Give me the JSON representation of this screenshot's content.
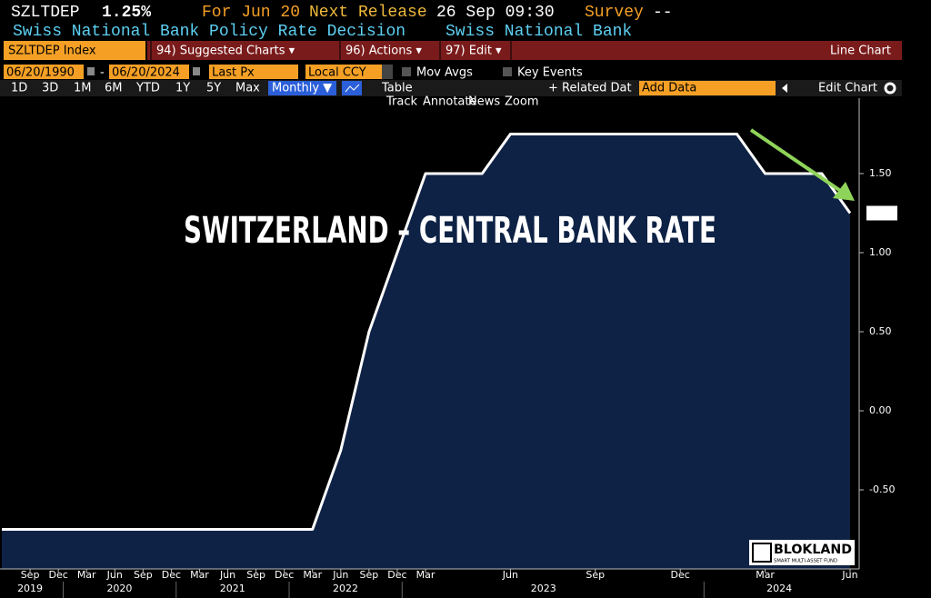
{
  "header": {
    "ticker": "SZLTDEP",
    "price": "1.25%",
    "for_label": "For Jun 20",
    "next_release_label": "Next Release",
    "next_release": "26 Sep 09:30",
    "survey_label": "Survey",
    "survey": "--",
    "description": "Swiss National Bank Policy Rate Decision",
    "source": "Swiss National Bank"
  },
  "toolbar": {
    "security": "SZLTDEP Index",
    "menus": [
      "94) Suggested Charts ▾",
      "96) Actions ▾",
      "97) Edit ▾"
    ],
    "chart_type": "Line Chart"
  },
  "controls": {
    "start_date": "06/20/1990",
    "separator": "-",
    "end_date": "06/20/2024",
    "field": "Last Px",
    "currency": "Local CCY",
    "mov_avgs": "Mov Avgs",
    "key_events": "Key Events"
  },
  "ranges": [
    "1D",
    "3D",
    "1M",
    "6M",
    "YTD",
    "1Y",
    "5Y",
    "Max"
  ],
  "frequency": "Monthly ▼",
  "table": "Table",
  "related": "+ Related Dat",
  "add_data": "Add Data",
  "edit_chart": "Edit Chart",
  "tools": [
    "Track",
    "Annotate",
    "News",
    "Zoom"
  ],
  "chart_data": {
    "type": "line",
    "annotation": "SWITZERLAND – CENTRAL BANK RATE",
    "x": [
      "2019-06",
      "2022-03",
      "2022-06",
      "2022-09",
      "2022-12",
      "2023-03",
      "2023-05",
      "2023-06",
      "2024-02",
      "2024-03",
      "2024-05",
      "2024-06"
    ],
    "values": [
      -0.75,
      -0.75,
      -0.25,
      0.5,
      1.0,
      1.5,
      1.5,
      1.75,
      1.75,
      1.5,
      1.5,
      1.25
    ],
    "color": "#ffffff",
    "area_color": "#0e2245",
    "xlim": [
      "2019-06",
      "2024-06"
    ],
    "xticks": [
      {
        "value": "2019-09",
        "label": "Sep"
      },
      {
        "value": "2019-12",
        "label": "Dec"
      },
      {
        "value": "2020-03",
        "label": "Mar"
      },
      {
        "value": "2020-06",
        "label": "Jun"
      },
      {
        "value": "2020-09",
        "label": "Sep"
      },
      {
        "value": "2020-12",
        "label": "Dec"
      },
      {
        "value": "2021-03",
        "label": "Mar"
      },
      {
        "value": "2021-06",
        "label": "Jun"
      },
      {
        "value": "2021-09",
        "label": "Sep"
      },
      {
        "value": "2021-12",
        "label": "Dec"
      },
      {
        "value": "2022-03",
        "label": "Mar"
      },
      {
        "value": "2022-06",
        "label": "Jun"
      },
      {
        "value": "2022-09",
        "label": "Sep"
      },
      {
        "value": "2022-12",
        "label": "Dec"
      },
      {
        "value": "2023-03",
        "label": "Mar"
      },
      {
        "value": "2023-06",
        "label": "Jun"
      },
      {
        "value": "2023-09",
        "label": "Sep"
      },
      {
        "value": "2023-12",
        "label": "Dec"
      },
      {
        "value": "2024-03",
        "label": "Mar"
      },
      {
        "value": "2024-06",
        "label": "Jun"
      }
    ],
    "year_labels": [
      2019,
      2020,
      2021,
      2022,
      2023,
      2024
    ],
    "ylim": [
      -1,
      2
    ],
    "yticks": [
      {
        "value": 1.5,
        "label": "1.50"
      },
      {
        "value": 1.0,
        "label": "1.00"
      },
      {
        "value": 0.5,
        "label": "0.50"
      },
      {
        "value": 0.0,
        "label": "0.00"
      },
      {
        "value": -0.5,
        "label": "-0.50"
      }
    ],
    "grid": false,
    "arrow_color": "#8fd45a"
  },
  "logo": {
    "name": "BLOKLAND",
    "tagline": "SMART MULTI-ASSET FUND"
  }
}
